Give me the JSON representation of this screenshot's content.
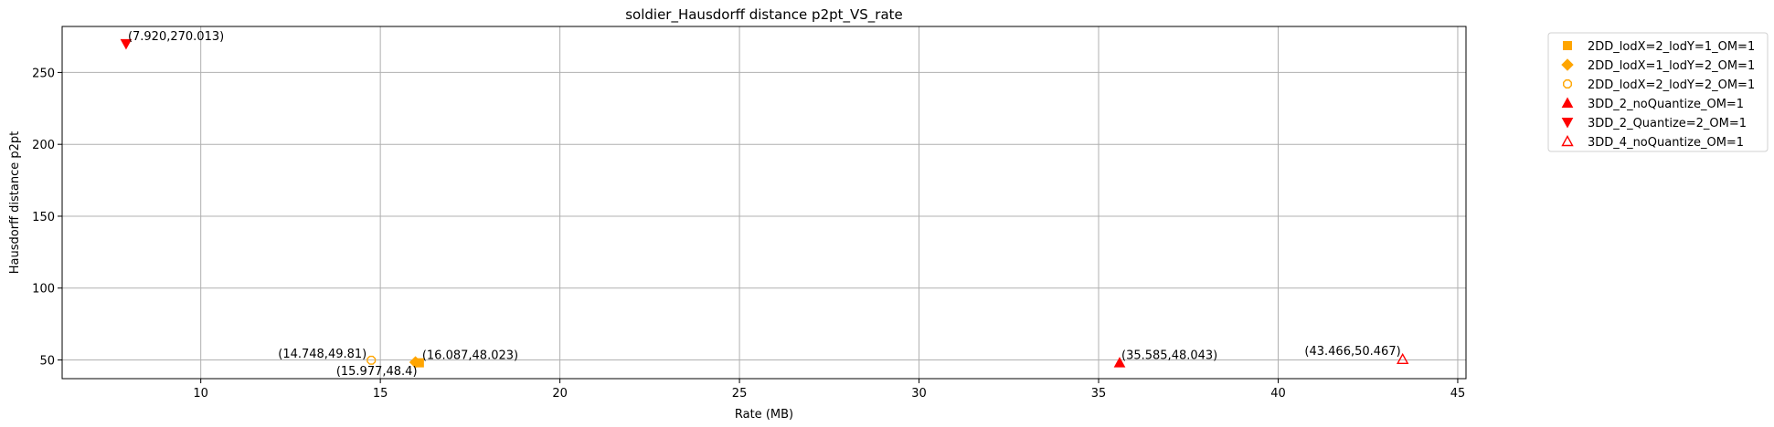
{
  "chart_data": {
    "type": "scatter",
    "title": "soldier_Hausdorff distance p2pt_VS_rate",
    "xlabel": "Rate (MB)",
    "ylabel": "Hausdorff distance p2pt",
    "xlim": [
      6.14,
      45.23
    ],
    "ylim": [
      37.0,
      282.0
    ],
    "xticks": [
      10,
      15,
      20,
      25,
      30,
      35,
      40,
      45
    ],
    "yticks": [
      50,
      100,
      150,
      200,
      250
    ],
    "grid": true,
    "legend_position": "outside-upper-right",
    "series": [
      {
        "name": "2DD_lodX=2_lodY=1_OM=1",
        "marker": "square",
        "color": "#FFA500",
        "filled": true,
        "points": [
          {
            "x": 16.087,
            "y": 48.023,
            "label": "(16.087,48.023)"
          }
        ]
      },
      {
        "name": "2DD_lodX=1_lodY=2_OM=1",
        "marker": "diamond",
        "color": "#FFA500",
        "filled": true,
        "points": [
          {
            "x": 15.977,
            "y": 48.4,
            "label": "(15.977,48.4)"
          }
        ]
      },
      {
        "name": "2DD_lodX=2_lodY=2_OM=1",
        "marker": "octagon",
        "color": "#FFA500",
        "filled": false,
        "points": [
          {
            "x": 14.748,
            "y": 49.81,
            "label": "(14.748,49.81)"
          }
        ]
      },
      {
        "name": "3DD_2_noQuantize_OM=1",
        "marker": "triangle-up",
        "color": "#FF0000",
        "filled": true,
        "points": [
          {
            "x": 35.585,
            "y": 48.043,
            "label": "(35.585,48.043)"
          }
        ]
      },
      {
        "name": "3DD_2_Quantize=2_OM=1",
        "marker": "triangle-down",
        "color": "#FF0000",
        "filled": true,
        "points": [
          {
            "x": 7.92,
            "y": 270.013,
            "label": "(7.920,270.013)"
          }
        ]
      },
      {
        "name": "3DD_4_noQuantize_OM=1",
        "marker": "triangle-up",
        "color": "#FF0000",
        "filled": false,
        "points": [
          {
            "x": 43.466,
            "y": 50.467,
            "label": "(43.466,50.467)"
          }
        ]
      }
    ]
  }
}
